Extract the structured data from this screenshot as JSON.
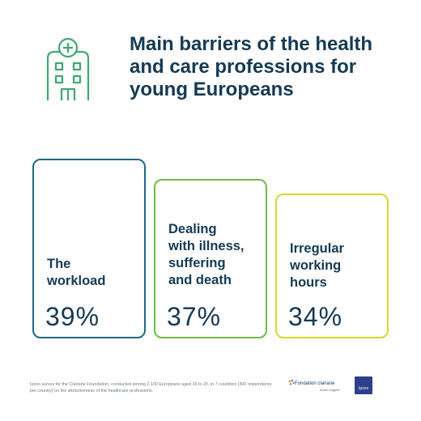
{
  "header": {
    "title": "Main barriers of the health and care professions for young Europeans"
  },
  "colors": {
    "text": "#153a54",
    "icon": "#3eaa72",
    "card1_border": "#1f6a86",
    "card2_border": "#6cbc46",
    "card3_border": "#dad52a"
  },
  "chart_data": {
    "type": "table",
    "categories": [
      "The\nworkload",
      "Dealing\nwith illness,\nsuffering\nand death",
      "Irregular\nworking\nhours"
    ],
    "values": [
      39,
      37,
      34
    ],
    "value_labels": [
      "39%",
      "37%",
      "34%"
    ],
    "title": "Main barriers of the health and care professions for young Europeans"
  },
  "footnote": "Ipsos survey for the Clariane Foundation, conducted among 2,100 Europeans aged 16 to 20, in 7 countries (300 respondents per country) on the attractiveness of the healthcare professions.",
  "logos": {
    "clariane": "Fondation clariane",
    "clariane_sub": "Aimer soigner",
    "ipsos": "Ipsos"
  },
  "icons": [
    "hospital-icon"
  ]
}
